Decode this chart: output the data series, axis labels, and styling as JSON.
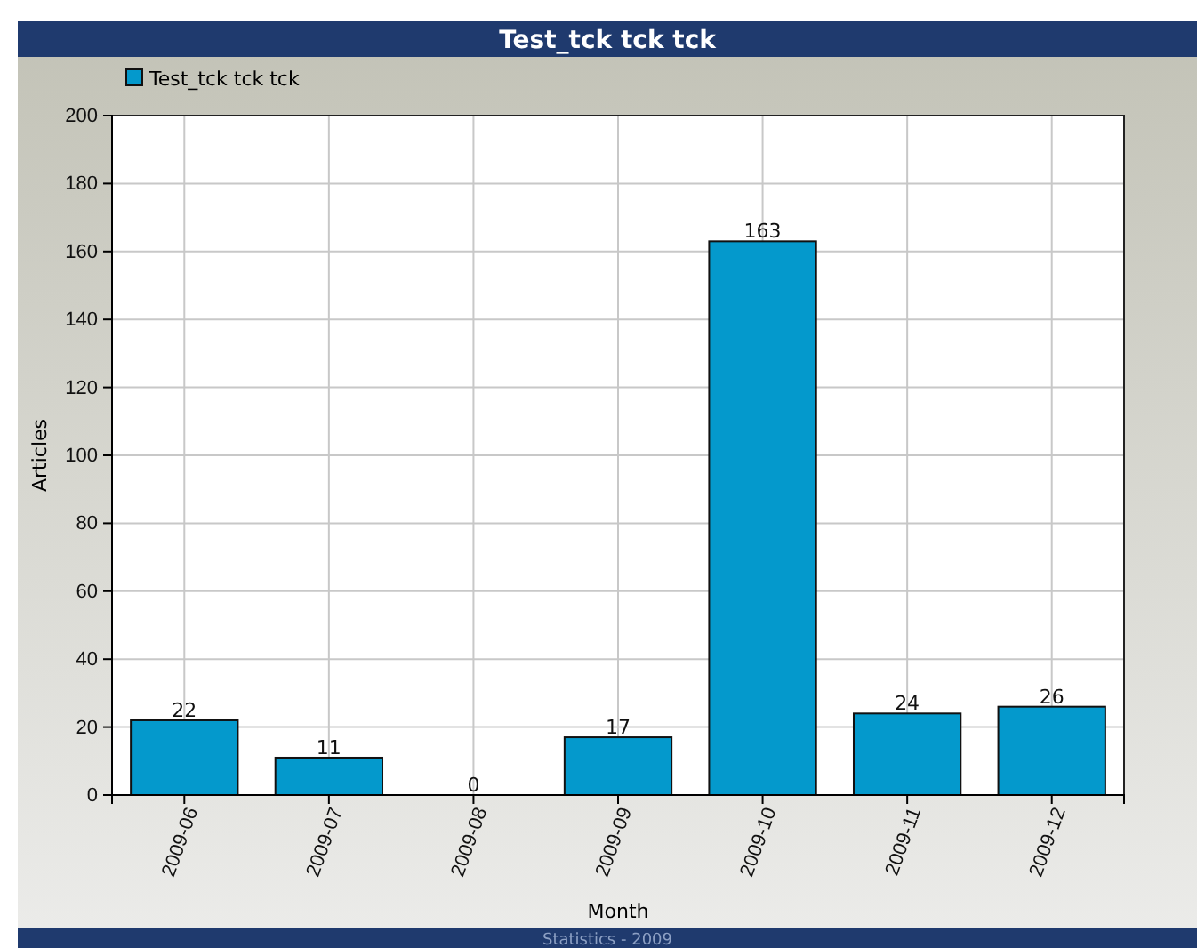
{
  "chart_data": {
    "type": "bar",
    "title": "Test_tck tck tck",
    "xlabel": "Month",
    "ylabel": "Articles",
    "categories": [
      "2009-06",
      "2009-07",
      "2009-08",
      "2009-09",
      "2009-10",
      "2009-11",
      "2009-12"
    ],
    "series": [
      {
        "name": "Test_tck tck tck",
        "color": "#0499cc",
        "values": [
          22,
          11,
          0,
          17,
          163,
          24,
          26
        ]
      }
    ],
    "ylim": [
      0,
      200
    ],
    "yticks": [
      0,
      20,
      40,
      60,
      80,
      100,
      120,
      140,
      160,
      180,
      200
    ],
    "grid": true,
    "legend": "top left",
    "data_labels": true,
    "annotations": [
      "Statistics - 2009"
    ]
  }
}
